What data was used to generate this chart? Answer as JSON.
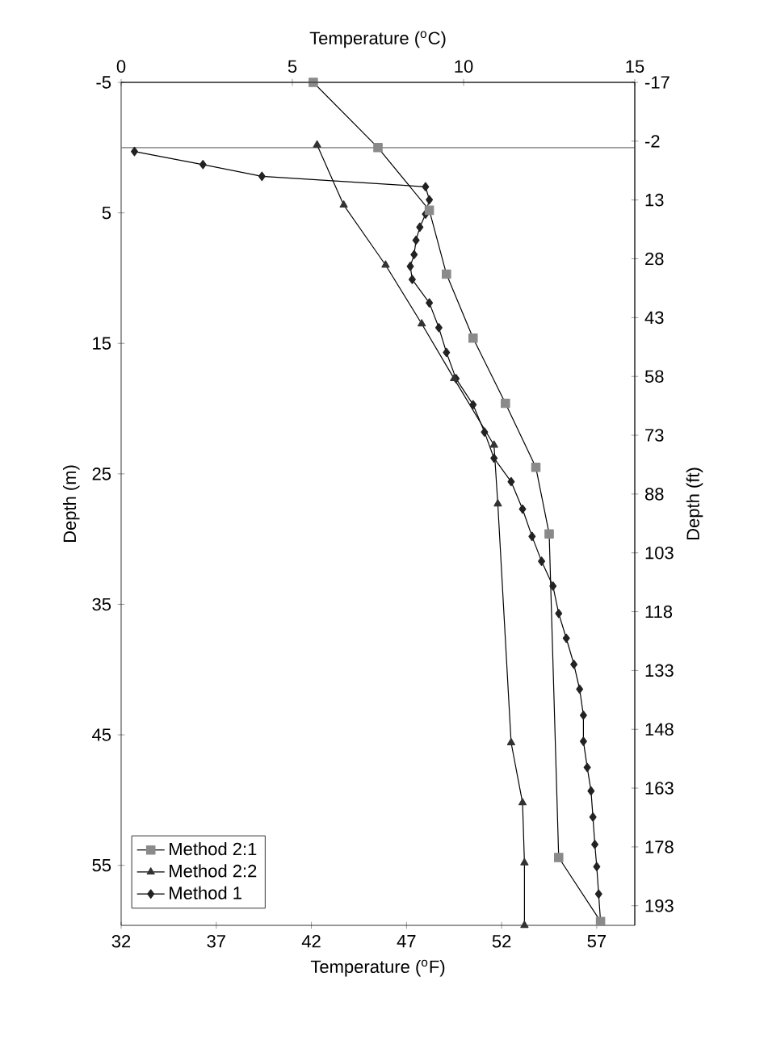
{
  "chart_data": {
    "type": "line",
    "xlabel": "Temperature ($^{o}$F)",
    "x2label": "Temperature ($^{o}$C)",
    "ylabel": "Depth (m)",
    "y2label": "Depth (ft)",
    "xlim": [
      32,
      59
    ],
    "xticks": [
      32,
      37,
      42,
      47,
      52,
      57
    ],
    "x2lim": [
      0,
      15
    ],
    "x2ticks": [
      0,
      5,
      10,
      15
    ],
    "ylim": [
      59.6,
      -5
    ],
    "yticks": [
      -5,
      5,
      15,
      25,
      35,
      45,
      55
    ],
    "y2lim": [
      198,
      -17
    ],
    "y2ticks": [
      -17,
      -2,
      13,
      28,
      43,
      58,
      73,
      88,
      103,
      118,
      133,
      148,
      163,
      178,
      193
    ],
    "legend": "bottom left",
    "ref_lines": [
      {
        "axis": "y",
        "value": 0,
        "color": "#777777"
      }
    ],
    "series": [
      {
        "name": "Method 2:1",
        "color": "#8a8a8a",
        "marker": "square",
        "x": [
          42.1,
          45.5,
          48.2,
          49.1,
          50.5,
          52.2,
          53.8,
          54.5,
          55.0,
          57.2
        ],
        "values": [
          -5,
          0,
          4.8,
          9.7,
          14.6,
          19.6,
          24.5,
          29.6,
          54.4,
          59.3
        ]
      },
      {
        "name": "Method 2:2",
        "color": "#333333",
        "marker": "triangle",
        "x": [
          42.3,
          43.7,
          45.9,
          47.8,
          49.5,
          51.6,
          51.8,
          52.5,
          53.1,
          53.2,
          53.2
        ],
        "values": [
          -0.2,
          4.4,
          9,
          13.5,
          17.7,
          22.8,
          27.3,
          45.6,
          50.2,
          54.8,
          59.6
        ]
      },
      {
        "name": "Method 1",
        "color": "#222222",
        "marker": "diamond",
        "x": [
          32.7,
          36.3,
          39.4,
          48.0,
          48.2,
          48.0,
          47.7,
          47.5,
          47.4,
          47.2,
          47.3,
          48.2,
          48.7,
          49.1,
          49.6,
          50.5,
          51.1,
          51.6,
          52.5,
          53.1,
          53.6,
          54.1,
          54.7,
          55.0,
          55.4,
          55.8,
          56.1,
          56.3,
          56.3,
          56.5,
          56.7,
          56.8,
          56.9,
          57.0,
          57.1,
          57.2
        ],
        "values": [
          0.3,
          1.3,
          2.2,
          3.0,
          4.0,
          5.1,
          6.1,
          7.1,
          8.2,
          9.1,
          10.1,
          11.9,
          13.8,
          15.7,
          17.7,
          19.7,
          21.8,
          23.8,
          25.6,
          27.7,
          29.8,
          31.7,
          33.6,
          35.7,
          37.6,
          39.6,
          41.5,
          43.5,
          45.5,
          47.5,
          49.3,
          51.3,
          53.4,
          55.1,
          57.2,
          59.3
        ]
      }
    ]
  }
}
